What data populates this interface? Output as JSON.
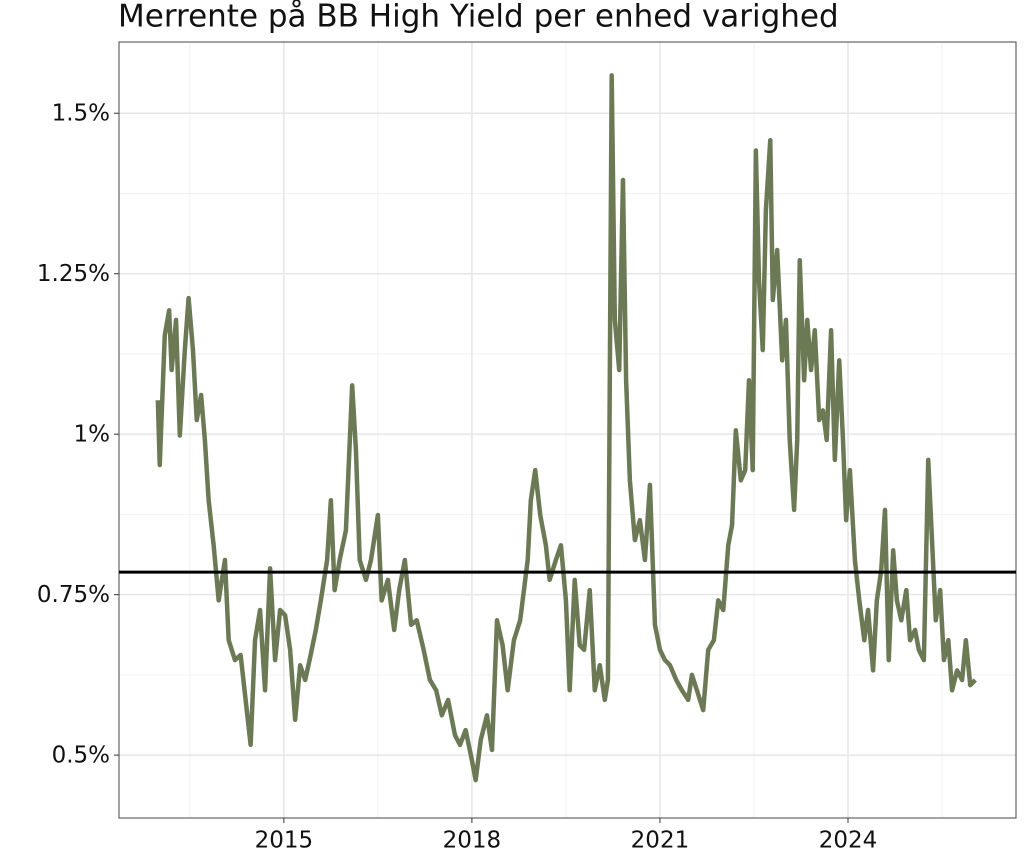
{
  "chart_data": {
    "type": "line",
    "title": "Merrente på BB High Yield per enhed varighed",
    "xlim": [
      2012.37,
      2026.68
    ],
    "ylim": [
      0.402,
      1.611
    ],
    "xticks": [
      2015,
      2018,
      2021,
      2024
    ],
    "yticks": [
      {
        "value": 0.5,
        "label": "0.5%"
      },
      {
        "value": 0.75,
        "label": "0.75%"
      },
      {
        "value": 1,
        "label": "1%"
      },
      {
        "value": 1.25,
        "label": "1.25%"
      },
      {
        "value": 1.5,
        "label": "1.5%"
      }
    ],
    "grid": true,
    "hline": {
      "value": 0.785,
      "color": "#000000"
    },
    "x": [
      2012.99,
      2013.02,
      2013.1,
      2013.17,
      2013.21,
      2013.28,
      2013.34,
      2013.42,
      2013.48,
      2013.55,
      2013.61,
      2013.68,
      2013.74,
      2013.8,
      2013.88,
      2013.96,
      2014.06,
      2014.12,
      2014.22,
      2014.31,
      2014.39,
      2014.47,
      2014.54,
      2014.62,
      2014.7,
      2014.78,
      2014.86,
      2014.94,
      2015.02,
      2015.1,
      2015.18,
      2015.26,
      2015.34,
      2015.41,
      2015.51,
      2015.59,
      2015.69,
      2015.75,
      2015.81,
      2015.89,
      2015.99,
      2016.09,
      2016.15,
      2016.21,
      2016.31,
      2016.39,
      2016.5,
      2016.56,
      2016.66,
      2016.76,
      2016.84,
      2016.93,
      2017.03,
      2017.12,
      2017.23,
      2017.33,
      2017.43,
      2017.52,
      2017.62,
      2017.73,
      2017.81,
      2017.9,
      2018.0,
      2018.06,
      2018.14,
      2018.24,
      2018.32,
      2018.4,
      2018.49,
      2018.57,
      2018.67,
      2018.77,
      2018.89,
      2018.94,
      2019.01,
      2019.09,
      2019.18,
      2019.24,
      2019.34,
      2019.42,
      2019.5,
      2019.56,
      2019.64,
      2019.72,
      2019.79,
      2019.88,
      2019.96,
      2020.04,
      2020.12,
      2020.17,
      2020.23,
      2020.28,
      2020.35,
      2020.41,
      2020.46,
      2020.52,
      2020.6,
      2020.68,
      2020.76,
      2020.84,
      2020.92,
      2021.0,
      2021.08,
      2021.16,
      2021.26,
      2021.35,
      2021.45,
      2021.51,
      2021.59,
      2021.69,
      2021.77,
      2021.86,
      2021.93,
      2022.01,
      2022.09,
      2022.15,
      2022.21,
      2022.29,
      2022.36,
      2022.42,
      2022.48,
      2022.53,
      2022.58,
      2022.64,
      2022.69,
      2022.76,
      2022.8,
      2022.87,
      2022.95,
      2023.01,
      2023.07,
      2023.14,
      2023.19,
      2023.23,
      2023.3,
      2023.35,
      2023.41,
      2023.47,
      2023.54,
      2023.6,
      2023.66,
      2023.73,
      2023.79,
      2023.86,
      2023.92,
      2023.97,
      2024.03,
      2024.11,
      2024.18,
      2024.26,
      2024.32,
      2024.4,
      2024.46,
      2024.53,
      2024.59,
      2024.65,
      2024.72,
      2024.78,
      2024.85,
      2024.93,
      2024.99,
      2025.07,
      2025.13,
      2025.21,
      2025.28,
      2025.34,
      2025.4,
      2025.47,
      2025.53,
      2025.6,
      2025.66,
      2025.74,
      2025.82,
      2025.88,
      2025.95,
      2026.03
    ],
    "series": [
      {
        "color": "#6b7a55",
        "values": [
          1.053,
          0.952,
          1.154,
          1.193,
          1.1,
          1.178,
          0.998,
          1.131,
          1.212,
          1.131,
          1.022,
          1.061,
          0.991,
          0.897,
          0.827,
          0.741,
          0.804,
          0.679,
          0.648,
          0.656,
          0.586,
          0.516,
          0.679,
          0.726,
          0.601,
          0.791,
          0.648,
          0.726,
          0.718,
          0.664,
          0.555,
          0.64,
          0.617,
          0.648,
          0.695,
          0.741,
          0.804,
          0.897,
          0.757,
          0.804,
          0.85,
          1.076,
          0.975,
          0.804,
          0.773,
          0.804,
          0.874,
          0.741,
          0.773,
          0.695,
          0.757,
          0.804,
          0.703,
          0.71,
          0.664,
          0.617,
          0.601,
          0.562,
          0.586,
          0.531,
          0.516,
          0.539,
          0.492,
          0.461,
          0.523,
          0.562,
          0.508,
          0.71,
          0.671,
          0.601,
          0.679,
          0.71,
          0.804,
          0.897,
          0.944,
          0.874,
          0.827,
          0.773,
          0.804,
          0.827,
          0.741,
          0.601,
          0.773,
          0.671,
          0.664,
          0.757,
          0.601,
          0.64,
          0.586,
          0.617,
          1.559,
          1.178,
          1.1,
          1.396,
          1.084,
          0.928,
          0.835,
          0.866,
          0.804,
          0.921,
          0.703,
          0.664,
          0.648,
          0.64,
          0.617,
          0.601,
          0.586,
          0.625,
          0.601,
          0.57,
          0.664,
          0.679,
          0.741,
          0.726,
          0.827,
          0.858,
          1.006,
          0.928,
          0.944,
          1.084,
          0.944,
          1.442,
          1.24,
          1.131,
          1.349,
          1.458,
          1.209,
          1.287,
          1.115,
          1.178,
          0.991,
          0.882,
          0.991,
          1.271,
          1.084,
          1.178,
          1.1,
          1.162,
          1.022,
          1.037,
          0.991,
          1.162,
          0.96,
          1.115,
          0.991,
          0.866,
          0.944,
          0.804,
          0.741,
          0.679,
          0.726,
          0.632,
          0.741,
          0.788,
          0.882,
          0.648,
          0.819,
          0.741,
          0.71,
          0.757,
          0.679,
          0.695,
          0.664,
          0.648,
          0.96,
          0.835,
          0.71,
          0.757,
          0.648,
          0.679,
          0.601,
          0.632,
          0.617,
          0.679,
          0.609,
          0.617
        ]
      }
    ]
  }
}
